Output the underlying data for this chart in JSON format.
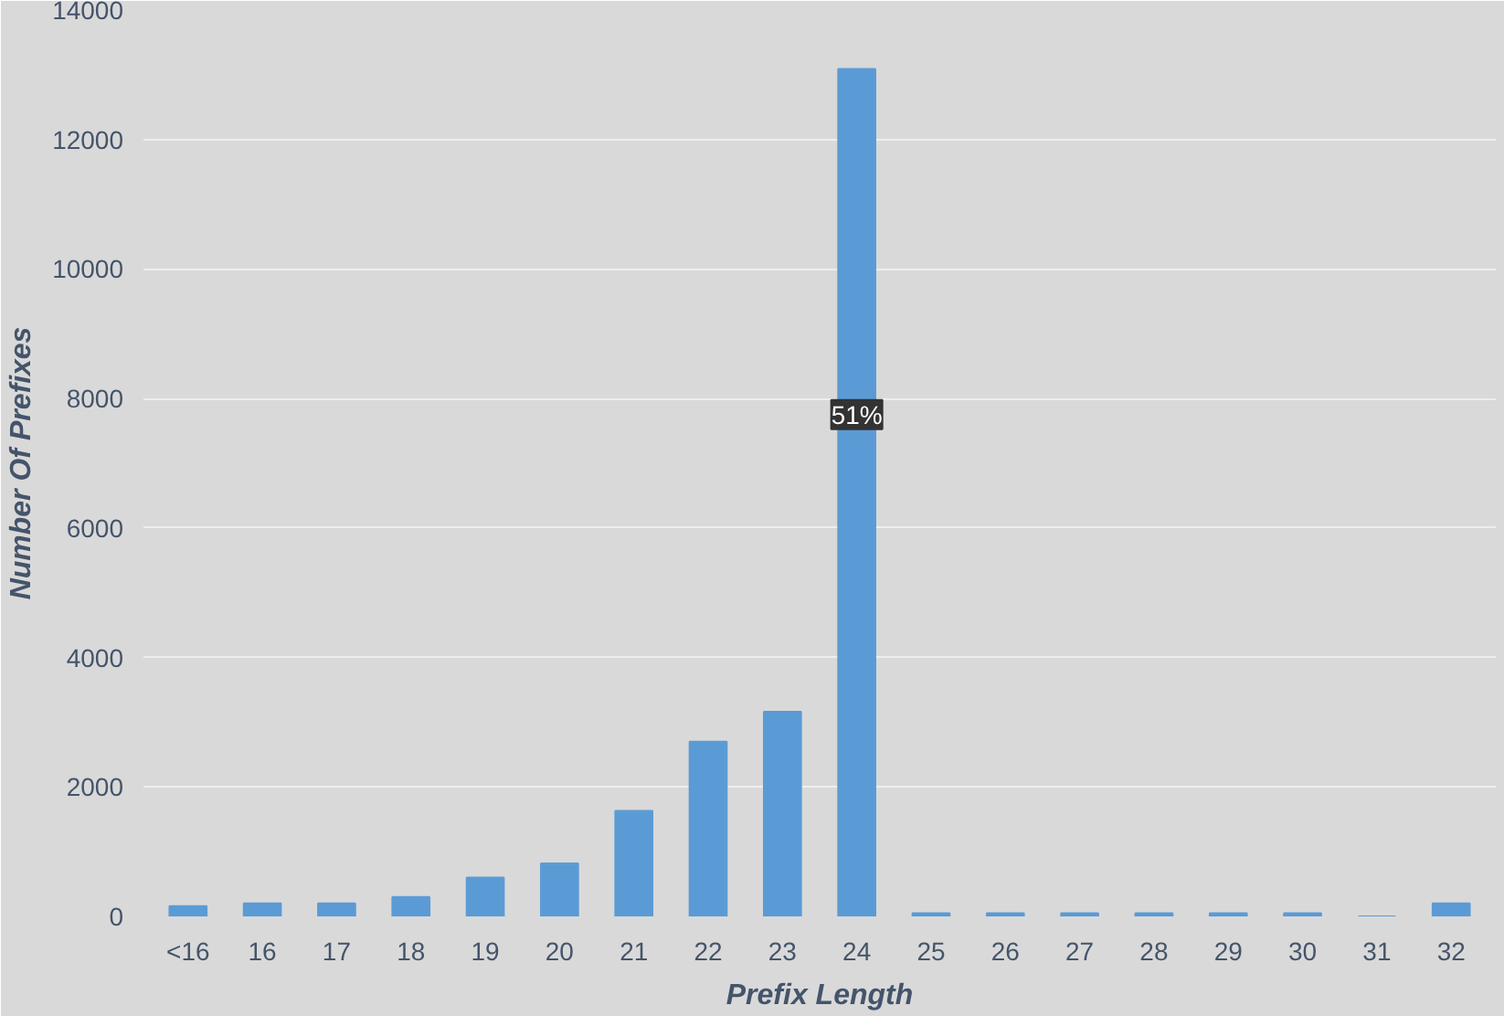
{
  "chart_data": {
    "type": "bar",
    "xlabel": "Prefix Length",
    "ylabel": "Number Of Prefixes",
    "categories": [
      "<16",
      "16",
      "17",
      "18",
      "19",
      "20",
      "21",
      "22",
      "23",
      "24",
      "25",
      "26",
      "27",
      "28",
      "29",
      "30",
      "31",
      "32"
    ],
    "values": [
      160,
      200,
      200,
      300,
      600,
      820,
      1630,
      2700,
      3160,
      13090,
      50,
      50,
      50,
      50,
      50,
      50,
      0,
      200
    ],
    "color": "#5b9bd5",
    "ylim": [
      0,
      14000
    ],
    "yticks": [
      0,
      2000,
      4000,
      6000,
      8000,
      10000,
      12000,
      14000
    ],
    "grid": "y",
    "annotations": [
      {
        "text": "51%",
        "x": "24",
        "y": 7750
      }
    ]
  }
}
